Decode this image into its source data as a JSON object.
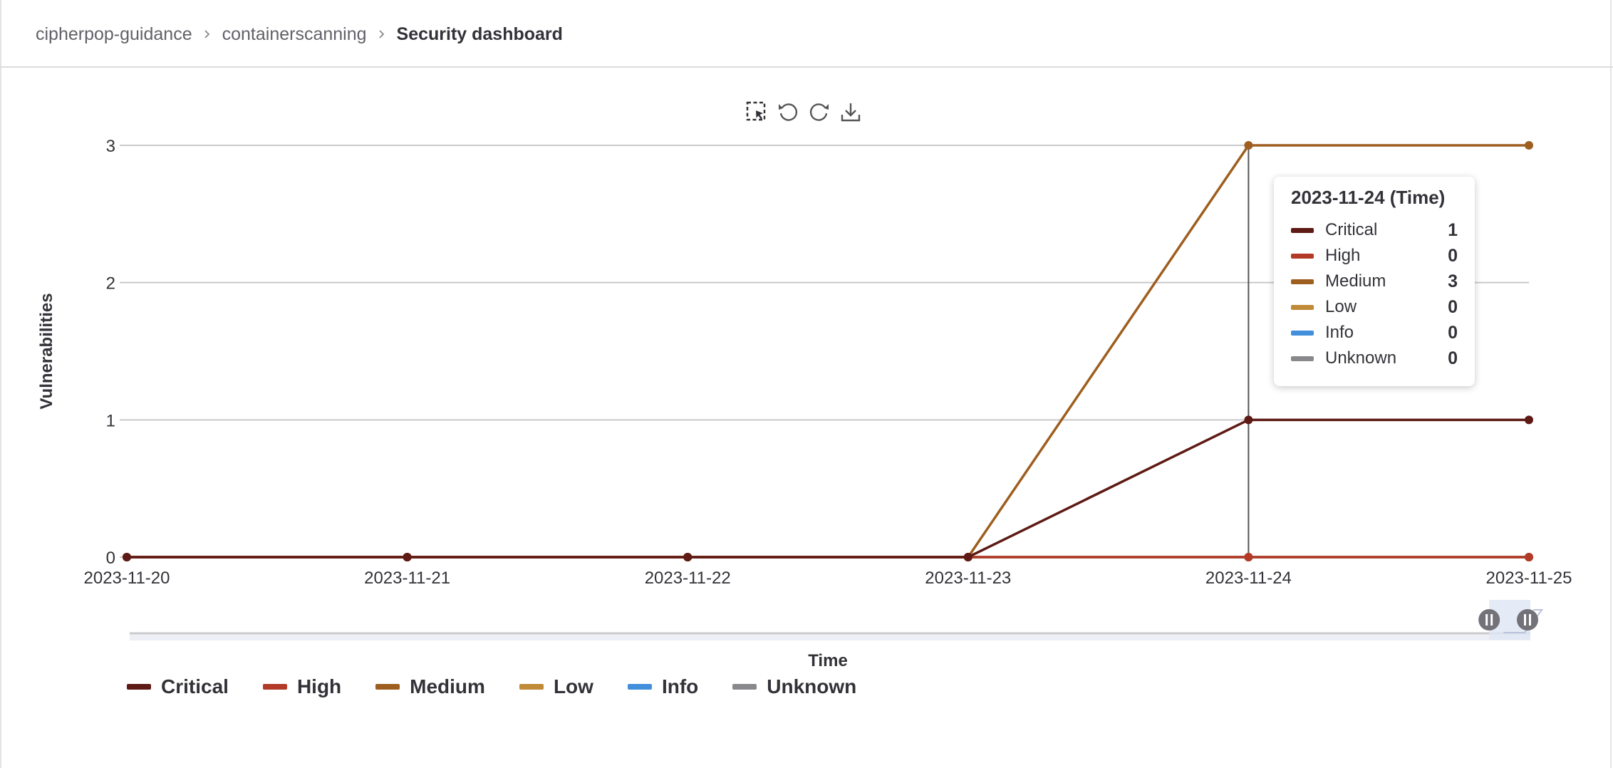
{
  "breadcrumb": {
    "items": [
      "cipherpop-guidance",
      "containerscanning"
    ],
    "current": "Security dashboard"
  },
  "toolbox": {
    "icons": [
      "zoom-select-icon",
      "undo-icon",
      "redo-icon",
      "download-icon"
    ]
  },
  "chart_data": {
    "type": "line",
    "title": "",
    "xlabel": "Time",
    "ylabel": "Vulnerabilities",
    "x": [
      "2023-11-20",
      "2023-11-21",
      "2023-11-22",
      "2023-11-23",
      "2023-11-24",
      "2023-11-25"
    ],
    "ylim": [
      0,
      3
    ],
    "yticks": [
      0,
      1,
      2,
      3
    ],
    "grid": true,
    "legend_position": "bottom-left",
    "series": [
      {
        "name": "Critical",
        "color": "#5e1a14",
        "values": [
          0,
          0,
          0,
          0,
          1,
          1
        ]
      },
      {
        "name": "High",
        "color": "#b23a26",
        "values": [
          0,
          0,
          0,
          0,
          0,
          0
        ]
      },
      {
        "name": "Medium",
        "color": "#9e5e1f",
        "values": [
          0,
          0,
          0,
          0,
          3,
          3
        ]
      },
      {
        "name": "Low",
        "color": "#c18a38",
        "values": [
          0,
          0,
          0,
          0,
          0,
          0
        ]
      },
      {
        "name": "Info",
        "color": "#428fdc",
        "values": [
          0,
          0,
          0,
          0,
          0,
          0
        ]
      },
      {
        "name": "Unknown",
        "color": "#89888d",
        "values": [
          0,
          0,
          0,
          0,
          0,
          0
        ]
      }
    ],
    "crosshair_x": "2023-11-24",
    "tooltip": {
      "title": "2023-11-24 (Time)",
      "rows": [
        {
          "name": "Critical",
          "value": "1"
        },
        {
          "name": "High",
          "value": "0"
        },
        {
          "name": "Medium",
          "value": "3"
        },
        {
          "name": "Low",
          "value": "0"
        },
        {
          "name": "Info",
          "value": "0"
        },
        {
          "name": "Unknown",
          "value": "0"
        }
      ]
    },
    "data_zoom": {
      "start": 0,
      "end": 1
    }
  }
}
